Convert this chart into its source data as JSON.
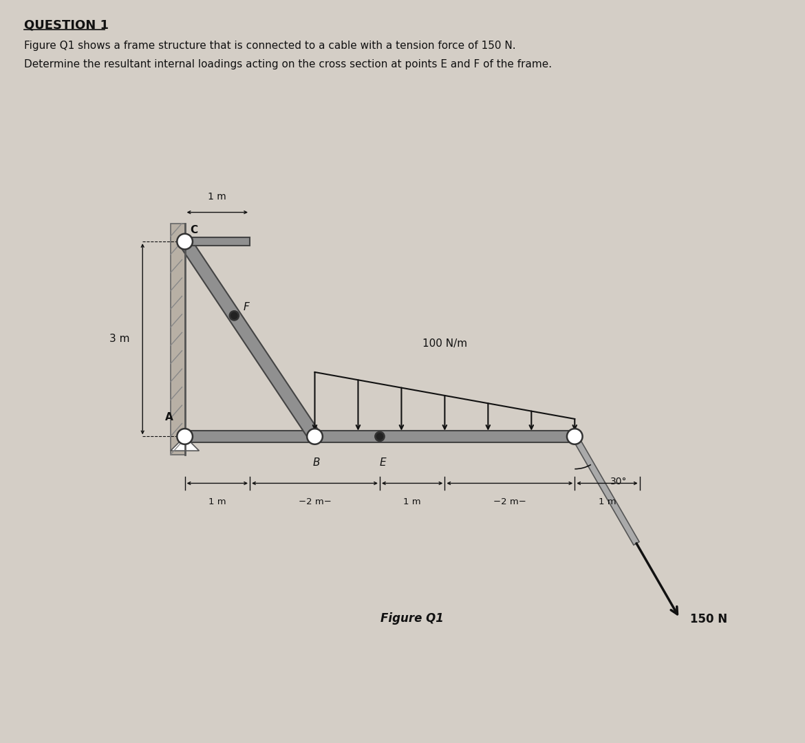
{
  "bg_color": "#d4cec6",
  "title": "QUESTION 1",
  "q_line1": "Figure Q1 shows a frame structure that is connected to a cable with a tension force of 150 N.",
  "q_line2": "Determine the resultant internal loadings acting on the cross section at points E and F of the frame.",
  "fig_caption": "Figure Q1",
  "label_3m": "3 m",
  "label_1m_top": "1 m",
  "label_C": "C",
  "label_F": "F",
  "label_A": "A",
  "label_B": "B",
  "label_E": "E",
  "label_100Nm": "100 N/m",
  "label_150N": "150 N",
  "label_30": "30°",
  "frame_color": "#909090",
  "text_color": "#111111",
  "dim_color": "#111111",
  "arrow_color": "#111111"
}
